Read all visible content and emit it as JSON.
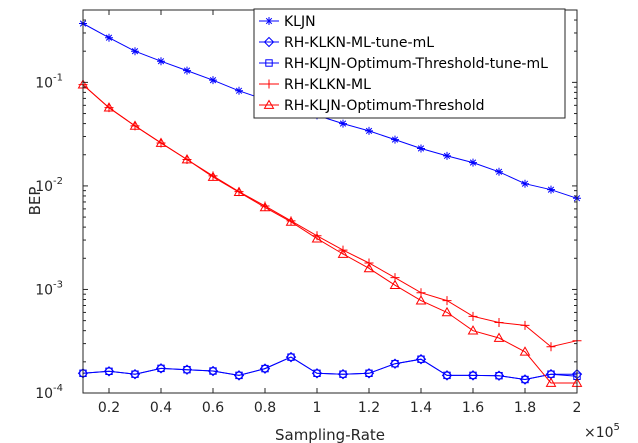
{
  "chart_data": {
    "type": "line",
    "xlabel": "Sampling-Rate",
    "ylabel": "BEP",
    "x_multiplier_label": "×10",
    "x_multiplier_exponent": "5",
    "xlim": [
      0.1,
      2.0
    ],
    "ylim": [
      0.0001,
      0.5
    ],
    "yscale": "log",
    "x_ticks": [
      0.2,
      0.4,
      0.6,
      0.8,
      1.0,
      1.2,
      1.4,
      1.6,
      1.8,
      2.0
    ],
    "x_tick_labels": [
      "0.2",
      "0.4",
      "0.6",
      "0.8",
      "1",
      "1.2",
      "1.4",
      "1.6",
      "1.8",
      "2"
    ],
    "y_ticks": [
      {
        "value": 0.0001,
        "base": "10",
        "exp": "-4"
      },
      {
        "value": 0.001,
        "base": "10",
        "exp": "-3"
      },
      {
        "value": 0.01,
        "base": "10",
        "exp": "-2"
      },
      {
        "value": 0.1,
        "base": "10",
        "exp": "-1"
      }
    ],
    "x": [
      0.1,
      0.2,
      0.3,
      0.4,
      0.5,
      0.6,
      0.7,
      0.8,
      0.9,
      1.0,
      1.1,
      1.2,
      1.3,
      1.4,
      1.5,
      1.6,
      1.7,
      1.8,
      1.9,
      2.0
    ],
    "legend_position": "top-right",
    "series": [
      {
        "name": "KLJN",
        "color": "#0000ff",
        "marker": "asterisk",
        "values": [
          0.37,
          0.27,
          0.2,
          0.16,
          0.13,
          0.105,
          0.083,
          0.068,
          0.058,
          0.048,
          0.04,
          0.034,
          0.028,
          0.023,
          0.0195,
          0.0168,
          0.0137,
          0.0105,
          0.0092,
          0.0076
        ]
      },
      {
        "name": "RH-KLKN-ML-tune-mL",
        "color": "#0000ff",
        "marker": "diamond",
        "values": [
          0.000155,
          0.000162,
          0.000152,
          0.000173,
          0.000168,
          0.000163,
          0.000148,
          0.000172,
          0.000222,
          0.000155,
          0.000152,
          0.000155,
          0.000192,
          0.000212,
          0.000148,
          0.000148,
          0.000147,
          0.000135,
          0.000152,
          0.000152
        ]
      },
      {
        "name": "RH-KLJN-Optimum-Threshold-tune-mL",
        "color": "#0000ff",
        "marker": "square",
        "values": [
          0.000155,
          0.000162,
          0.000152,
          0.000173,
          0.000168,
          0.000163,
          0.000148,
          0.000172,
          0.000222,
          0.000155,
          0.000152,
          0.000155,
          0.000192,
          0.000212,
          0.000148,
          0.000148,
          0.000147,
          0.000135,
          0.000152,
          0.000145
        ]
      },
      {
        "name": "RH-KLKN-ML",
        "color": "#ff0000",
        "marker": "plus",
        "values": [
          0.095,
          0.057,
          0.038,
          0.026,
          0.018,
          0.0125,
          0.0088,
          0.0064,
          0.0046,
          0.0033,
          0.0024,
          0.0018,
          0.0013,
          0.00093,
          0.00078,
          0.00055,
          0.00048,
          0.00045,
          0.00028,
          0.00032
        ]
      },
      {
        "name": "RH-KLJN-Optimum-Threshold",
        "color": "#ff0000",
        "marker": "triangle",
        "values": [
          0.095,
          0.057,
          0.038,
          0.026,
          0.018,
          0.0122,
          0.0087,
          0.0062,
          0.0045,
          0.0031,
          0.0022,
          0.0016,
          0.0011,
          0.00078,
          0.0006,
          0.0004,
          0.00034,
          0.00025,
          0.000125,
          0.000125
        ]
      }
    ]
  }
}
